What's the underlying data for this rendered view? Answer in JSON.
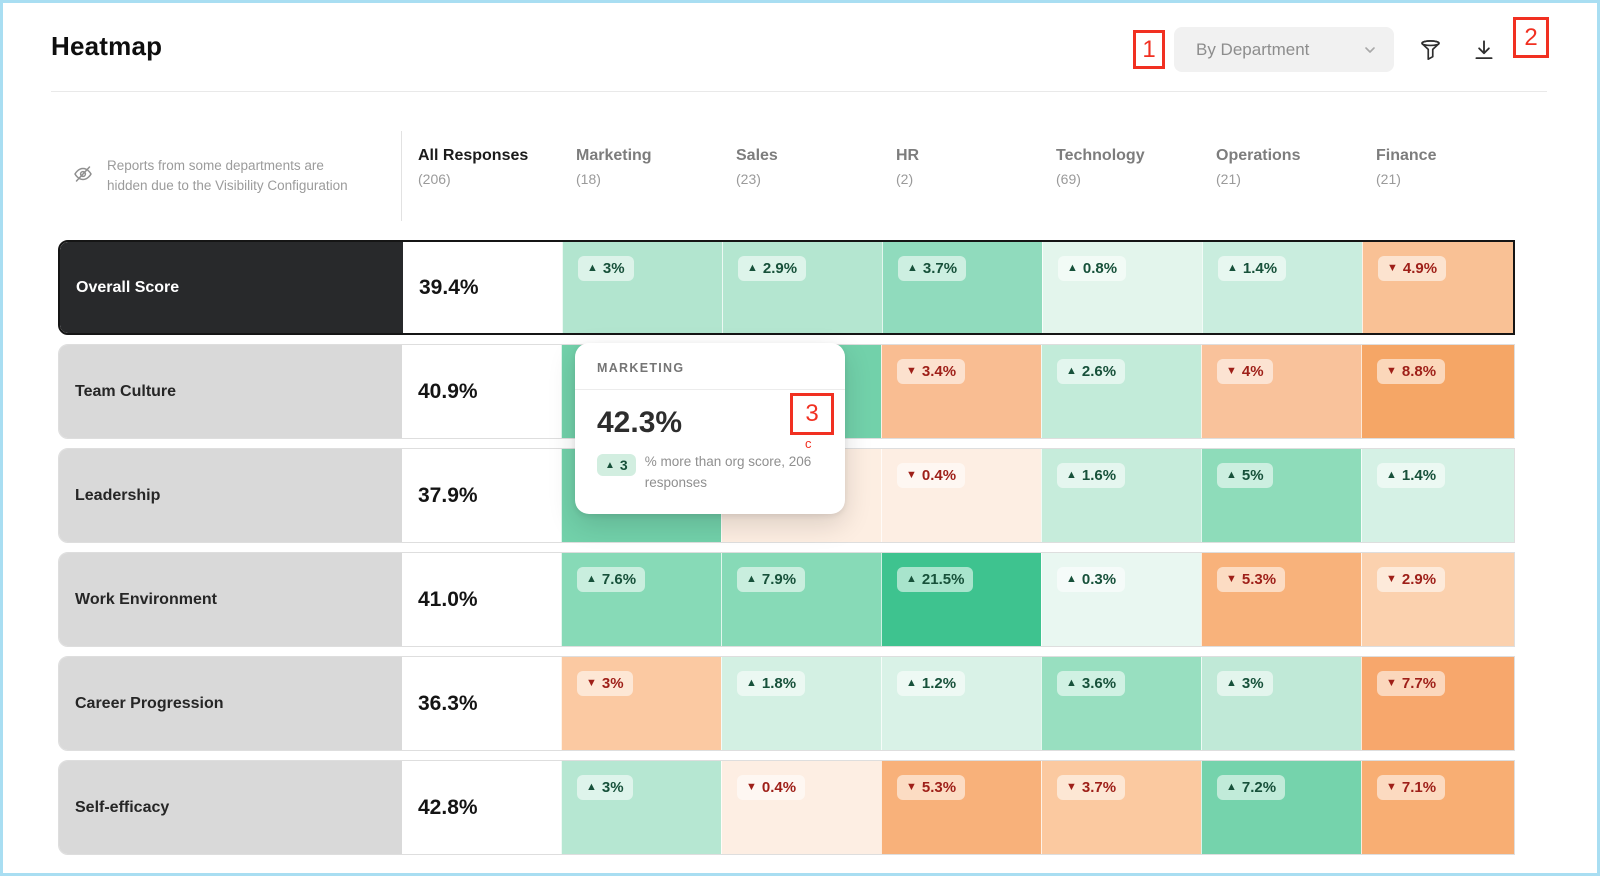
{
  "page": {
    "title": "Heatmap",
    "frame_color": "#a9def2"
  },
  "toolbar": {
    "group_by_value": "By Department",
    "filter_icon": "funnel-icon",
    "download_icon": "download-icon",
    "chevron_icon": "chevron-down-icon"
  },
  "visibility_note": {
    "icon": "eye-off-icon",
    "text": "Reports from some departments are hidden due to the Visibility Configuration"
  },
  "annotations": {
    "box1": "1",
    "box2": "2",
    "box3": "3",
    "box3_sub": "c"
  },
  "colors": {
    "up_text": "#17513a",
    "down_text": "#9e1f18",
    "selected_row_bg": "#28292b",
    "row_label_bg": "#d9d9d9",
    "annotation_red": "#f13021"
  },
  "tooltip": {
    "department": "MARKETING",
    "score": "42.3%",
    "delta": "3",
    "delta_direction": "up",
    "description": "% more than org score, 206 responses"
  },
  "chart_data": {
    "type": "heatmap",
    "columns": [
      {
        "label": "All Responses",
        "count": "(206)"
      },
      {
        "label": "Marketing",
        "count": "(18)"
      },
      {
        "label": "Sales",
        "count": "(23)"
      },
      {
        "label": "HR",
        "count": "(2)"
      },
      {
        "label": "Technology",
        "count": "(69)"
      },
      {
        "label": "Operations",
        "count": "(21)"
      },
      {
        "label": "Finance",
        "count": "(21)"
      }
    ],
    "rows": [
      {
        "label": "Overall Score",
        "score": "39.4%",
        "selected": true,
        "cells": [
          {
            "value": "3%",
            "direction": "up",
            "bg": "#b2e5cf"
          },
          {
            "value": "2.9%",
            "direction": "up",
            "bg": "#b4e6d0"
          },
          {
            "value": "3.7%",
            "direction": "up",
            "bg": "#90dbbd"
          },
          {
            "value": "0.8%",
            "direction": "up",
            "bg": "#e3f5ec"
          },
          {
            "value": "1.4%",
            "direction": "up",
            "bg": "#c9edde"
          },
          {
            "value": "4.9%",
            "direction": "down",
            "bg": "#f9c195"
          }
        ]
      },
      {
        "label": "Team Culture",
        "score": "40.9%",
        "selected": false,
        "cells": [
          {
            "value": null,
            "direction": null,
            "bg": "#72d1aa"
          },
          {
            "value": null,
            "direction": null,
            "bg": "#72d1aa"
          },
          {
            "value": "3.4%",
            "direction": "down",
            "bg": "#f9bd92"
          },
          {
            "value": "2.6%",
            "direction": "up",
            "bg": "#c2ebd9"
          },
          {
            "value": "4%",
            "direction": "down",
            "bg": "#f9c29b"
          },
          {
            "value": "8.8%",
            "direction": "down",
            "bg": "#f5a666"
          }
        ]
      },
      {
        "label": "Leadership",
        "score": "37.9%",
        "selected": false,
        "cells": [
          {
            "value": null,
            "direction": null,
            "bg": "#72d1aa"
          },
          {
            "value": null,
            "direction": null,
            "bg": "#fdeee2"
          },
          {
            "value": "0.4%",
            "direction": "down",
            "bg": "#fdeee3"
          },
          {
            "value": "1.6%",
            "direction": "up",
            "bg": "#c6ecdb"
          },
          {
            "value": "5%",
            "direction": "up",
            "bg": "#8edcba"
          },
          {
            "value": "1.4%",
            "direction": "up",
            "bg": "#d5f1e5"
          }
        ]
      },
      {
        "label": "Work Environment",
        "score": "41.0%",
        "selected": false,
        "cells": [
          {
            "value": "7.6%",
            "direction": "up",
            "bg": "#87dab7"
          },
          {
            "value": "7.9%",
            "direction": "up",
            "bg": "#87dab7"
          },
          {
            "value": "21.5%",
            "direction": "up",
            "bg": "#3ec38f"
          },
          {
            "value": "0.3%",
            "direction": "up",
            "bg": "#e9f7f1"
          },
          {
            "value": "5.3%",
            "direction": "down",
            "bg": "#f8b27b"
          },
          {
            "value": "2.9%",
            "direction": "down",
            "bg": "#fbd1ae"
          }
        ]
      },
      {
        "label": "Career Progression",
        "score": "36.3%",
        "selected": false,
        "cells": [
          {
            "value": "3%",
            "direction": "down",
            "bg": "#fbc9a2"
          },
          {
            "value": "1.8%",
            "direction": "up",
            "bg": "#d3f0e3"
          },
          {
            "value": "1.2%",
            "direction": "up",
            "bg": "#d9f2e7"
          },
          {
            "value": "3.6%",
            "direction": "up",
            "bg": "#98dfc0"
          },
          {
            "value": "3%",
            "direction": "up",
            "bg": "#c0e9d7"
          },
          {
            "value": "7.7%",
            "direction": "down",
            "bg": "#f7a76c"
          }
        ]
      },
      {
        "label": "Self-efficacy",
        "score": "42.8%",
        "selected": false,
        "cells": [
          {
            "value": "3%",
            "direction": "up",
            "bg": "#b6e7d2"
          },
          {
            "value": "0.4%",
            "direction": "down",
            "bg": "#fdeee3"
          },
          {
            "value": "5.3%",
            "direction": "down",
            "bg": "#f8b17a"
          },
          {
            "value": "3.7%",
            "direction": "down",
            "bg": "#fbc9a0"
          },
          {
            "value": "7.2%",
            "direction": "up",
            "bg": "#75d3ac"
          },
          {
            "value": "7.1%",
            "direction": "down",
            "bg": "#f8ae73"
          }
        ]
      }
    ]
  }
}
